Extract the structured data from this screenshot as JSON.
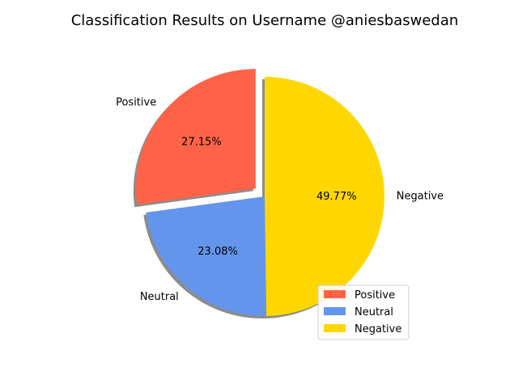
{
  "chart_data": {
    "type": "pie",
    "title": "Classification Results on Username @aniesbaswedan",
    "slices": [
      {
        "label": "Positive",
        "value": 27.15,
        "pct_label": "27.15%",
        "color": "#FF6347",
        "explode": true
      },
      {
        "label": "Neutral",
        "value": 23.08,
        "pct_label": "23.08%",
        "color": "#6495ED",
        "explode": false
      },
      {
        "label": "Negative",
        "value": 49.77,
        "pct_label": "49.77%",
        "color": "#FFD700",
        "explode": false
      }
    ],
    "shadow": true,
    "legend": {
      "position": "lower-right",
      "entries": [
        "Positive",
        "Neutral",
        "Negative"
      ]
    }
  }
}
